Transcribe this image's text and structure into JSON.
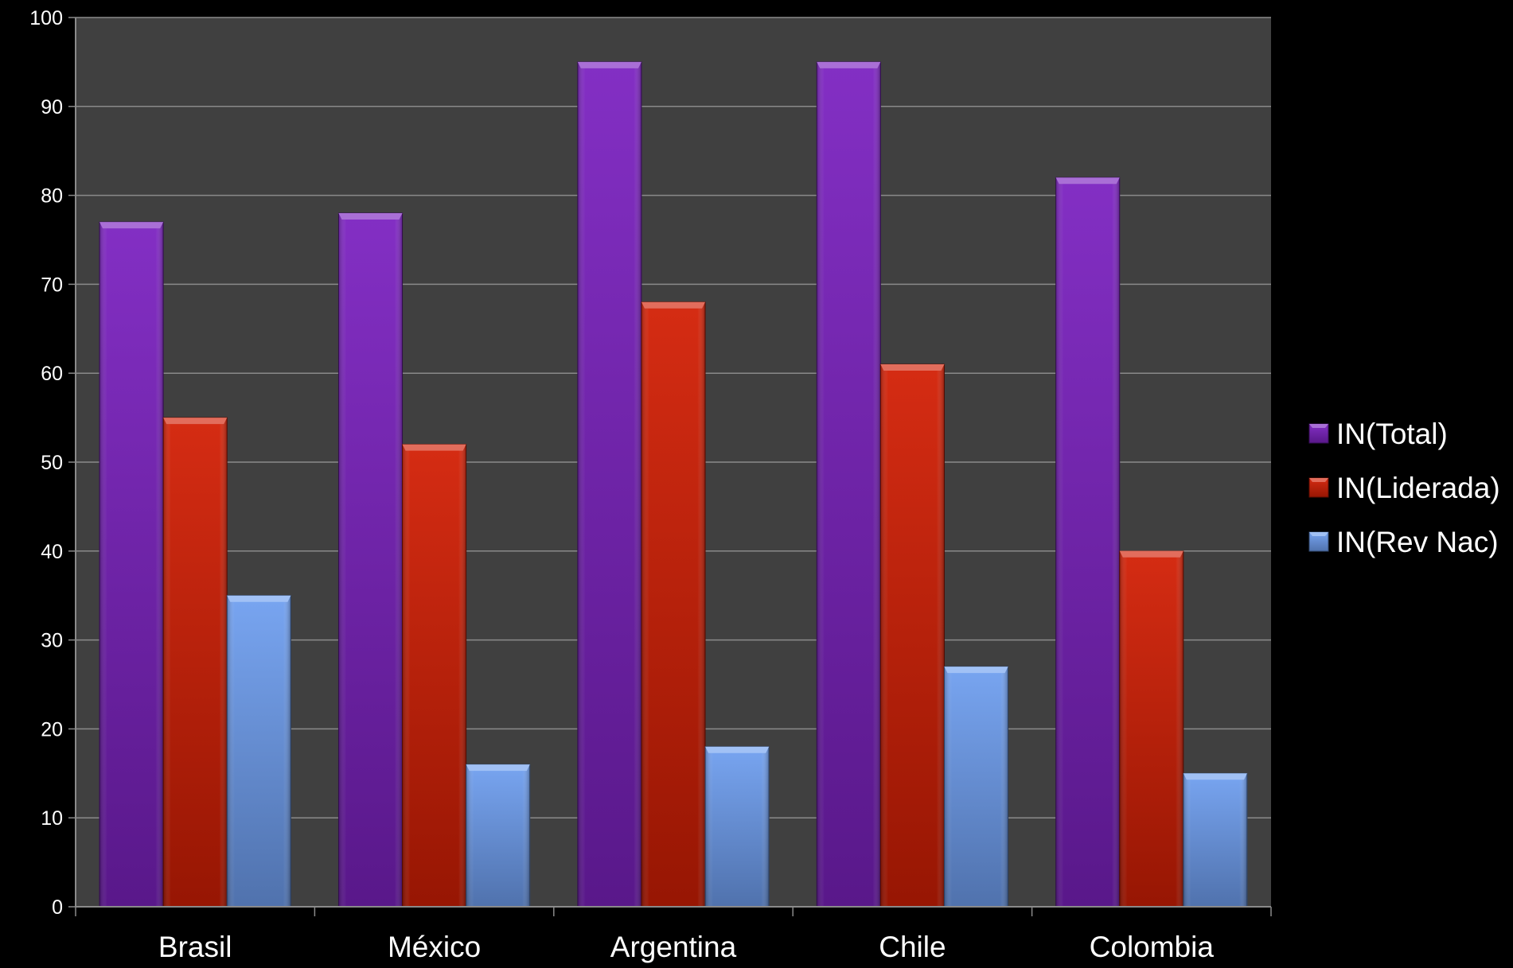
{
  "chart_data": {
    "type": "bar",
    "title": "",
    "xlabel": "",
    "ylabel": "",
    "ylim": [
      0,
      100
    ],
    "yticks": [
      "0",
      "10",
      "20",
      "30",
      "40",
      "50",
      "60",
      "70",
      "80",
      "90",
      "100"
    ],
    "categories": [
      "Brasil",
      "México",
      "Argentina",
      "Chile",
      "Colombia"
    ],
    "series": [
      {
        "name": "IN(Total)",
        "values": [
          77,
          78,
          95,
          95,
          82
        ],
        "color": "#7b22c0"
      },
      {
        "name": "IN(Liderada)",
        "values": [
          55,
          52,
          68,
          61,
          40
        ],
        "color": "#d21e04"
      },
      {
        "name": "IN(Rev Nac)",
        "values": [
          35,
          16,
          18,
          27,
          15
        ],
        "color": "#6f9ff0"
      }
    ],
    "grid": true,
    "legend": "right",
    "colors": {
      "background": "#000000",
      "plot_area": "#404040",
      "grid": "#8a8a8a",
      "text": "#ffffff"
    }
  }
}
